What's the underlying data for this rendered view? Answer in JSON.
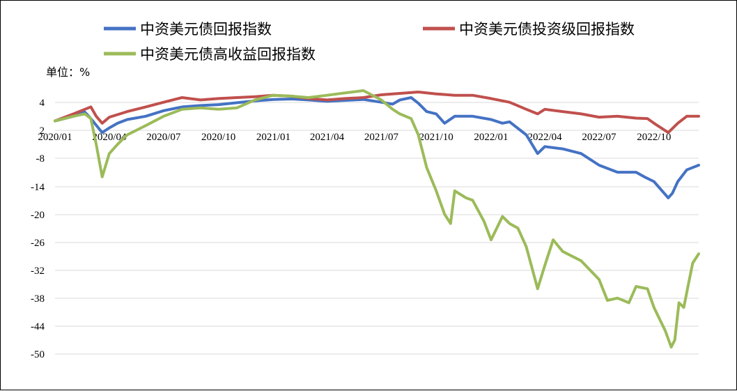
{
  "chart_data": {
    "type": "line",
    "y_unit_label": "单位：%",
    "ylim": [
      -50,
      4
    ],
    "y_ticks": [
      "4",
      "2",
      "-8",
      "-14",
      "-20",
      "-26",
      "-32",
      "-38",
      "-44",
      "-50"
    ],
    "x_ticks": [
      "2020/01",
      "2020/04",
      "2020/07",
      "2020/10",
      "2021/01",
      "2021/04",
      "2021/07",
      "2021/10",
      "2022/01",
      "2022/04",
      "2022/07",
      "2022/10"
    ],
    "grid": "horizontal",
    "legend_position": "top",
    "series": [
      {
        "name": "中资美元债回报指数",
        "color": "#4472C4",
        "points": [
          [
            "2020/01/01",
            0.0
          ],
          [
            "2020/02/01",
            1.0
          ],
          [
            "2020/02/20",
            1.9
          ],
          [
            "2020/03/01",
            0.5
          ],
          [
            "2020/03/20",
            -2.5
          ],
          [
            "2020/04/01",
            -1.5
          ],
          [
            "2020/04/15",
            -0.5
          ],
          [
            "2020/05/01",
            0.3
          ],
          [
            "2020/06/01",
            1.0
          ],
          [
            "2020/07/01",
            2.2
          ],
          [
            "2020/08/01",
            3.0
          ],
          [
            "2020/09/01",
            3.3
          ],
          [
            "2020/10/01",
            3.5
          ],
          [
            "2020/11/01",
            3.9
          ],
          [
            "2020/12/01",
            4.3
          ],
          [
            "2021/01/01",
            4.6
          ],
          [
            "2021/02/01",
            4.7
          ],
          [
            "2021/03/01",
            4.5
          ],
          [
            "2021/04/01",
            4.2
          ],
          [
            "2021/05/01",
            4.4
          ],
          [
            "2021/06/01",
            4.6
          ],
          [
            "2021/07/01",
            4.0
          ],
          [
            "2021/07/20",
            3.6
          ],
          [
            "2021/08/01",
            4.5
          ],
          [
            "2021/08/20",
            5.0
          ],
          [
            "2021/09/01",
            3.8
          ],
          [
            "2021/09/15",
            2.0
          ],
          [
            "2021/10/01",
            1.5
          ],
          [
            "2021/10/15",
            -0.5
          ],
          [
            "2021/11/01",
            1.0
          ],
          [
            "2021/12/01",
            1.0
          ],
          [
            "2022/01/01",
            0.3
          ],
          [
            "2022/01/20",
            -0.5
          ],
          [
            "2022/02/01",
            -0.2
          ],
          [
            "2022/03/01",
            -3.0
          ],
          [
            "2022/03/20",
            -7.0
          ],
          [
            "2022/04/01",
            -5.5
          ],
          [
            "2022/05/01",
            -6.0
          ],
          [
            "2022/06/01",
            -7.0
          ],
          [
            "2022/07/01",
            -9.5
          ],
          [
            "2022/08/01",
            -11.0
          ],
          [
            "2022/09/01",
            -11.0
          ],
          [
            "2022/09/15",
            -12.0
          ],
          [
            "2022/10/01",
            -13.0
          ],
          [
            "2022/10/25",
            -16.5
          ],
          [
            "2022/11/01",
            -15.5
          ],
          [
            "2022/11/10",
            -13.0
          ],
          [
            "2022/11/25",
            -10.5
          ],
          [
            "2022/12/15",
            -9.5
          ]
        ]
      },
      {
        "name": "中资美元债投资级回报指数",
        "color": "#C0504D",
        "points": [
          [
            "2020/01/01",
            0.0
          ],
          [
            "2020/02/01",
            1.5
          ],
          [
            "2020/02/20",
            2.5
          ],
          [
            "2020/03/01",
            3.0
          ],
          [
            "2020/03/10",
            1.0
          ],
          [
            "2020/03/20",
            -0.5
          ],
          [
            "2020/04/01",
            0.8
          ],
          [
            "2020/05/01",
            2.0
          ],
          [
            "2020/06/01",
            3.0
          ],
          [
            "2020/07/01",
            4.0
          ],
          [
            "2020/08/01",
            5.0
          ],
          [
            "2020/09/01",
            4.5
          ],
          [
            "2020/10/01",
            4.8
          ],
          [
            "2020/11/01",
            5.0
          ],
          [
            "2020/12/01",
            5.2
          ],
          [
            "2021/01/01",
            5.5
          ],
          [
            "2021/02/01",
            5.3
          ],
          [
            "2021/03/01",
            4.8
          ],
          [
            "2021/04/01",
            4.5
          ],
          [
            "2021/05/01",
            4.8
          ],
          [
            "2021/06/01",
            5.0
          ],
          [
            "2021/07/01",
            5.6
          ],
          [
            "2021/08/01",
            5.9
          ],
          [
            "2021/09/01",
            6.2
          ],
          [
            "2021/10/01",
            5.8
          ],
          [
            "2021/11/01",
            5.5
          ],
          [
            "2021/12/01",
            5.5
          ],
          [
            "2022/01/01",
            4.8
          ],
          [
            "2022/02/01",
            4.0
          ],
          [
            "2022/03/01",
            2.5
          ],
          [
            "2022/03/20",
            1.5
          ],
          [
            "2022/04/01",
            2.5
          ],
          [
            "2022/05/01",
            2.0
          ],
          [
            "2022/06/01",
            1.5
          ],
          [
            "2022/07/01",
            0.8
          ],
          [
            "2022/08/01",
            1.0
          ],
          [
            "2022/09/01",
            0.6
          ],
          [
            "2022/09/20",
            0.5
          ],
          [
            "2022/10/01",
            -0.5
          ],
          [
            "2022/10/25",
            -2.5
          ],
          [
            "2022/11/10",
            -0.5
          ],
          [
            "2022/11/25",
            1.0
          ],
          [
            "2022/12/15",
            1.0
          ]
        ]
      },
      {
        "name": "中资美元债高收益回报指数",
        "color": "#9BBB59",
        "points": [
          [
            "2020/01/01",
            0.0
          ],
          [
            "2020/02/01",
            1.0
          ],
          [
            "2020/02/20",
            1.5
          ],
          [
            "2020/03/01",
            0.5
          ],
          [
            "2020/03/10",
            -5.0
          ],
          [
            "2020/03/20",
            -12.0
          ],
          [
            "2020/04/01",
            -7.0
          ],
          [
            "2020/04/15",
            -5.0
          ],
          [
            "2020/05/01",
            -3.0
          ],
          [
            "2020/06/01",
            -1.0
          ],
          [
            "2020/07/01",
            1.0
          ],
          [
            "2020/08/01",
            2.5
          ],
          [
            "2020/09/01",
            2.8
          ],
          [
            "2020/10/01",
            2.5
          ],
          [
            "2020/11/01",
            2.8
          ],
          [
            "2020/12/01",
            4.5
          ],
          [
            "2021/01/01",
            5.5
          ],
          [
            "2021/02/01",
            5.3
          ],
          [
            "2021/03/01",
            5.0
          ],
          [
            "2021/04/01",
            5.5
          ],
          [
            "2021/05/01",
            6.0
          ],
          [
            "2021/06/01",
            6.5
          ],
          [
            "2021/07/01",
            4.5
          ],
          [
            "2021/07/20",
            2.5
          ],
          [
            "2021/08/01",
            1.5
          ],
          [
            "2021/08/20",
            0.5
          ],
          [
            "2021/09/01",
            -3.0
          ],
          [
            "2021/09/15",
            -10.0
          ],
          [
            "2021/10/01",
            -15.0
          ],
          [
            "2021/10/15",
            -20.0
          ],
          [
            "2021/10/25",
            -22.0
          ],
          [
            "2021/11/01",
            -15.0
          ],
          [
            "2021/11/20",
            -16.5
          ],
          [
            "2021/12/01",
            -17.0
          ],
          [
            "2021/12/20",
            -21.5
          ],
          [
            "2022/01/01",
            -25.5
          ],
          [
            "2022/01/20",
            -20.5
          ],
          [
            "2022/02/01",
            -22.0
          ],
          [
            "2022/02/15",
            -23.0
          ],
          [
            "2022/03/01",
            -27.0
          ],
          [
            "2022/03/20",
            -36.0
          ],
          [
            "2022/04/01",
            -31.0
          ],
          [
            "2022/04/15",
            -25.5
          ],
          [
            "2022/05/01",
            -28.0
          ],
          [
            "2022/06/01",
            -30.0
          ],
          [
            "2022/07/01",
            -34.0
          ],
          [
            "2022/07/15",
            -38.5
          ],
          [
            "2022/08/01",
            -38.0
          ],
          [
            "2022/08/20",
            -39.0
          ],
          [
            "2022/09/01",
            -35.5
          ],
          [
            "2022/09/20",
            -36.0
          ],
          [
            "2022/10/01",
            -40.0
          ],
          [
            "2022/10/20",
            -45.0
          ],
          [
            "2022/10/30",
            -48.5
          ],
          [
            "2022/11/05",
            -47.0
          ],
          [
            "2022/11/12",
            -39.0
          ],
          [
            "2022/11/20",
            -40.0
          ],
          [
            "2022/11/27",
            -35.5
          ],
          [
            "2022/12/05",
            -30.5
          ],
          [
            "2022/12/15",
            -28.5
          ]
        ]
      }
    ]
  }
}
